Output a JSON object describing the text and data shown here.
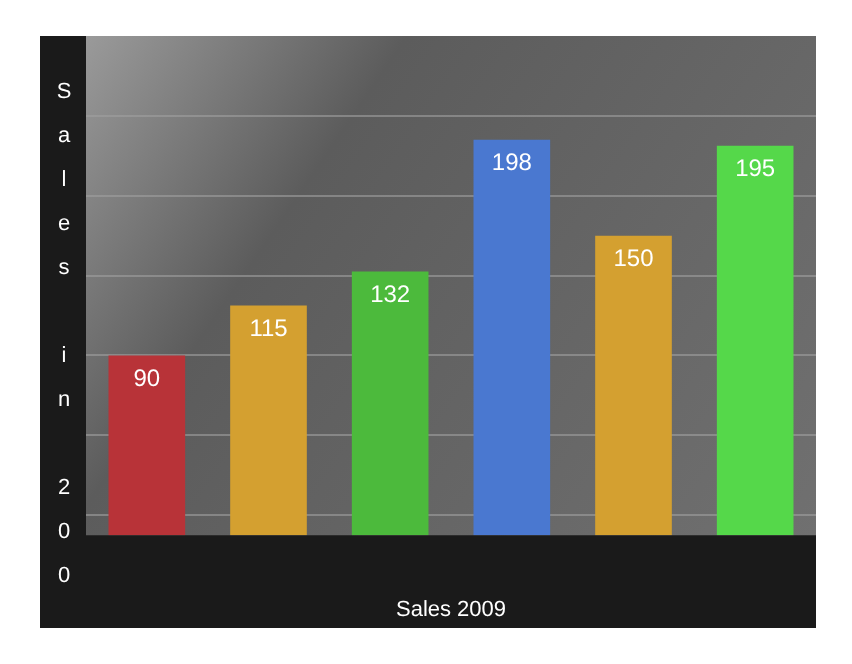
{
  "chart_data": {
    "type": "bar",
    "xlabel": "Sales 2009",
    "ylabel": "Sales in 200",
    "categories": [
      null,
      null,
      null,
      null,
      null,
      null
    ],
    "values": [
      90,
      115,
      132,
      198,
      150,
      195
    ],
    "colors": [
      "#b83338",
      "#d4a030",
      "#4cba3c",
      "#4a78d0",
      "#d4a030",
      "#55d84a"
    ],
    "ylim": [
      0,
      250
    ],
    "yticks": [
      {
        "value": 10,
        "label": null
      },
      {
        "value": 50,
        "label": null
      },
      {
        "value": 90,
        "label": null
      },
      {
        "value": 130,
        "label": null
      },
      {
        "value": 170,
        "label": null
      },
      {
        "value": 210,
        "label": null
      }
    ],
    "grid": "y",
    "data_labels": true,
    "legend": false
  }
}
